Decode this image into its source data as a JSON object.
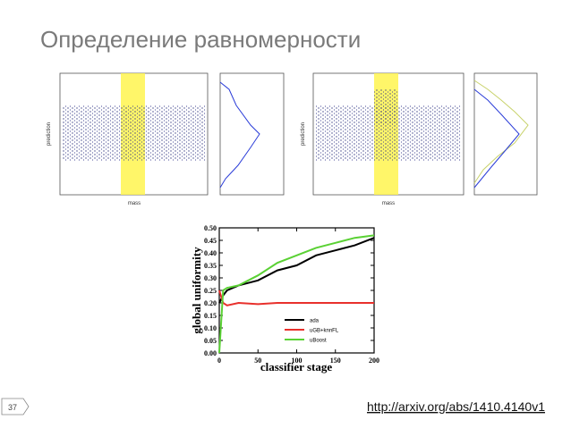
{
  "header": {
    "title": "Определение равномерности"
  },
  "panels": [
    {
      "x_label": "mass",
      "y_label": "prediction"
    },
    {
      "x_label": "mass",
      "y_label": "prediction"
    }
  ],
  "chart_data": {
    "type": "line",
    "x_label": "classifier stage",
    "y_label": "global uniformity",
    "x": [
      0,
      5,
      10,
      25,
      50,
      75,
      100,
      125,
      150,
      175,
      200
    ],
    "series": [
      {
        "name": "ada",
        "color": "#000000",
        "values": [
          0.2,
          0.23,
          0.25,
          0.27,
          0.29,
          0.33,
          0.35,
          0.39,
          0.41,
          0.43,
          0.46
        ]
      },
      {
        "name": "uGB+knnFL",
        "color": "#e8302c",
        "values": [
          0.25,
          0.2,
          0.19,
          0.2,
          0.195,
          0.2,
          0.2,
          0.2,
          0.2,
          0.2,
          0.2
        ]
      },
      {
        "name": "uBoost",
        "color": "#5ad134",
        "values": [
          0,
          0.25,
          0.26,
          0.27,
          0.31,
          0.36,
          0.39,
          0.42,
          0.44,
          0.46,
          0.47
        ]
      }
    ],
    "xlim": [
      0,
      200
    ],
    "ylim": [
      0,
      0.5
    ],
    "xticks": [
      0,
      50,
      100,
      150,
      200
    ],
    "yticks": [
      {
        "value": 0,
        "label": "0.00"
      },
      {
        "value": 0.05,
        "label": "0.05"
      },
      {
        "value": 0.1,
        "label": "0.10"
      },
      {
        "value": 0.15,
        "label": "0.15"
      },
      {
        "value": 0.2,
        "label": "0.20"
      },
      {
        "value": 0.25,
        "label": "0.25"
      },
      {
        "value": 0.3,
        "label": "0.30"
      },
      {
        "value": 0.35,
        "label": "0.35"
      },
      {
        "value": 0.4,
        "label": "0.40"
      },
      {
        "value": 0.45,
        "label": "0.45"
      },
      {
        "value": 0.5,
        "label": "0.50"
      }
    ]
  },
  "footer": {
    "slide_number": "37",
    "link": "http://arxiv.org/abs/1410.4140v1"
  }
}
